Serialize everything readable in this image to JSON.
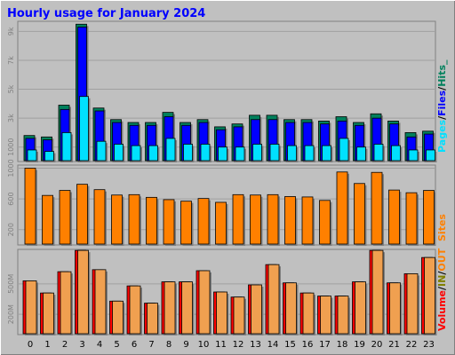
{
  "title": "Hourly usage for January 2024",
  "colors": {
    "frame": "#c0c0c0",
    "plot_bg": "#c0c0c0",
    "title": "#0000ff",
    "hits": "#00805c",
    "files": "#0000ff",
    "pages": "#00e0ff",
    "sites": "#ff8000",
    "kbytes_in": "#ff0000",
    "kbytes_out": "#f0a050",
    "legend_in": "#808000",
    "legend_out": "#ff8000"
  },
  "legend": {
    "hits": {
      "pages": "Pages",
      "sep1": "/",
      "files": "Files",
      "sep2": "/",
      "hits": "Hits_"
    },
    "sites": "Sites",
    "volume": {
      "volume": "Volume",
      "sep1": "/",
      "in": "IN",
      "sep2": "/",
      "out": "OUT"
    }
  },
  "chart_data": [
    {
      "type": "bar",
      "panel": "hits-files-pages",
      "categories": [
        "0",
        "1",
        "2",
        "3",
        "4",
        "5",
        "6",
        "7",
        "8",
        "9",
        "10",
        "11",
        "12",
        "13",
        "14",
        "15",
        "16",
        "17",
        "18",
        "19",
        "20",
        "21",
        "22",
        "23"
      ],
      "ylim": [
        0,
        9700
      ],
      "yticks": [
        {
          "value": 1000,
          "label": "1000"
        },
        {
          "value": 3000,
          "label": "3k"
        },
        {
          "value": 5000,
          "label": "5k"
        },
        {
          "value": 7000,
          "label": "7k"
        },
        {
          "value": 9000,
          "label": "9k"
        }
      ],
      "series": [
        {
          "name": "Hits",
          "values": [
            1800,
            1700,
            3900,
            9500,
            3700,
            2900,
            2700,
            2700,
            3400,
            2700,
            2900,
            2400,
            2600,
            3200,
            3200,
            2900,
            2900,
            2800,
            3100,
            2700,
            3300,
            2800,
            2000,
            2100
          ]
        },
        {
          "name": "Files",
          "values": [
            1600,
            1500,
            3600,
            9300,
            3500,
            2700,
            2500,
            2500,
            3100,
            2500,
            2700,
            2200,
            2400,
            2900,
            2900,
            2700,
            2700,
            2600,
            2800,
            2500,
            3000,
            2600,
            1700,
            1900
          ]
        },
        {
          "name": "Pages",
          "values": [
            800,
            700,
            2000,
            4500,
            1400,
            1200,
            1100,
            1100,
            1600,
            1200,
            1200,
            1000,
            1000,
            1200,
            1200,
            1100,
            1100,
            1100,
            1600,
            1000,
            1200,
            1100,
            800,
            800
          ]
        }
      ]
    },
    {
      "type": "bar",
      "panel": "sites",
      "categories": [
        "0",
        "1",
        "2",
        "3",
        "4",
        "5",
        "6",
        "7",
        "8",
        "9",
        "10",
        "11",
        "12",
        "13",
        "14",
        "15",
        "16",
        "17",
        "18",
        "19",
        "20",
        "21",
        "22",
        "23"
      ],
      "ylim": [
        0,
        1040
      ],
      "yticks": [
        {
          "value": 200,
          "label": "200"
        },
        {
          "value": 600,
          "label": "600"
        },
        {
          "value": 1000,
          "label": "1000"
        }
      ],
      "series": [
        {
          "name": "Sites",
          "values": [
            1000,
            645,
            710,
            790,
            720,
            650,
            655,
            620,
            590,
            570,
            605,
            555,
            655,
            650,
            655,
            630,
            625,
            580,
            950,
            800,
            945,
            715,
            680,
            710
          ]
        }
      ]
    },
    {
      "type": "bar",
      "panel": "volume",
      "categories": [
        "0",
        "1",
        "2",
        "3",
        "4",
        "5",
        "6",
        "7",
        "8",
        "9",
        "10",
        "11",
        "12",
        "13",
        "14",
        "15",
        "16",
        "17",
        "18",
        "19",
        "20",
        "21",
        "22",
        "23"
      ],
      "ylim": [
        0,
        840
      ],
      "yticks": [
        {
          "value": 200,
          "label": "200M"
        },
        {
          "value": 500,
          "label": "500M"
        }
      ],
      "series": [
        {
          "name": "KBytes In",
          "values": [
            530,
            410,
            620,
            830,
            640,
            330,
            480,
            310,
            520,
            520,
            630,
            420,
            370,
            490,
            690,
            510,
            410,
            380,
            380,
            520,
            830,
            510,
            600,
            760
          ]
        },
        {
          "name": "KBytes Out",
          "values": [
            530,
            410,
            620,
            830,
            640,
            330,
            480,
            310,
            520,
            520,
            630,
            420,
            370,
            490,
            690,
            510,
            410,
            380,
            380,
            520,
            830,
            510,
            600,
            760
          ]
        }
      ]
    }
  ]
}
